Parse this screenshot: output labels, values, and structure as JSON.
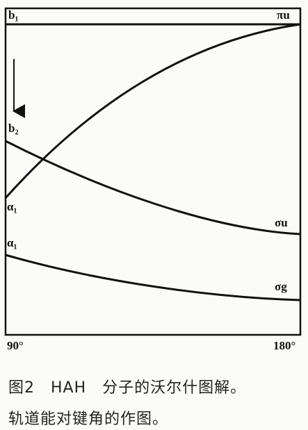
{
  "levels": {
    "left": [
      "b₁",
      "b₂",
      "α₁",
      "α₁"
    ],
    "right": [
      "πu",
      "σu",
      "σg"
    ]
  },
  "axis": {
    "start": "90°",
    "end": "180°"
  },
  "caption": [
    "图2　HAH　分子的沃尔什图解。",
    "轨道能对键角的作图。"
  ]
}
